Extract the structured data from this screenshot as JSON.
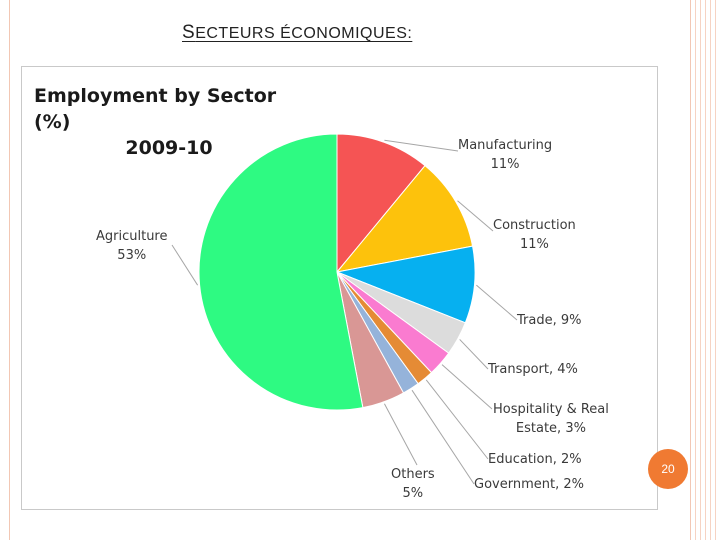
{
  "slide": {
    "title_first": "S",
    "title_rest": "ECTEURS ÉCONOMIQUES:",
    "page_number": "20"
  },
  "chart_data": {
    "type": "pie",
    "title_line1": "Employment by Sector (%)",
    "title_line2": "2009-10",
    "slices": [
      {
        "label": "Manufacturing",
        "value_text": "11%",
        "value": 11,
        "color": "#f55454"
      },
      {
        "label": "Construction",
        "value_text": "11%",
        "value": 11,
        "color": "#fdc20c"
      },
      {
        "label": "Trade, 9%",
        "value": 9,
        "color": "#06b0f0"
      },
      {
        "label": "Transport, 4%",
        "value": 4,
        "color": "#dcdcdc"
      },
      {
        "label": "Hospitality & Real",
        "label2": "Estate, 3%",
        "value": 3,
        "color": "#fa7bd0"
      },
      {
        "label": "Education, 2%",
        "value": 2,
        "color": "#e58b35"
      },
      {
        "label": "Government, 2%",
        "value": 2,
        "color": "#95b3da"
      },
      {
        "label": "Others",
        "value_text": "5%",
        "value": 5,
        "color": "#d99795"
      },
      {
        "label": "Agriculture",
        "value_text": "53%",
        "value": 53,
        "color": "#2efa82"
      }
    ]
  }
}
